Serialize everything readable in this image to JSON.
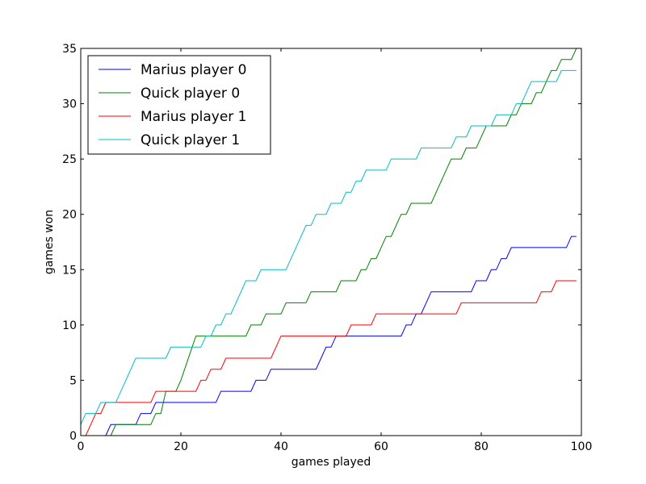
{
  "chart_data": {
    "type": "line",
    "title": "",
    "xlabel": "games played",
    "ylabel": "games won",
    "xlim": [
      0,
      100
    ],
    "ylim": [
      0,
      35
    ],
    "xticks": [
      0,
      20,
      40,
      60,
      80,
      100
    ],
    "yticks": [
      0,
      5,
      10,
      15,
      20,
      25,
      30,
      35
    ],
    "grid": false,
    "legend_position": "top-left",
    "series": [
      {
        "name": "Marius player 0",
        "color": "#0000ff",
        "points": [
          [
            5,
            0
          ],
          [
            6,
            1
          ],
          [
            11,
            1
          ],
          [
            12,
            2
          ],
          [
            14,
            2
          ],
          [
            15,
            3
          ],
          [
            27,
            3
          ],
          [
            28,
            4
          ],
          [
            34,
            4
          ],
          [
            35,
            5
          ],
          [
            37,
            5
          ],
          [
            38,
            6
          ],
          [
            47,
            6
          ],
          [
            48,
            7
          ],
          [
            49,
            8
          ],
          [
            50,
            8
          ],
          [
            51,
            9
          ],
          [
            64,
            9
          ],
          [
            65,
            10
          ],
          [
            66,
            10
          ],
          [
            67,
            11
          ],
          [
            68,
            11
          ],
          [
            69,
            12
          ],
          [
            70,
            13
          ],
          [
            78,
            13
          ],
          [
            79,
            14
          ],
          [
            81,
            14
          ],
          [
            82,
            15
          ],
          [
            83,
            15
          ],
          [
            84,
            16
          ],
          [
            85,
            16
          ],
          [
            86,
            17
          ],
          [
            97,
            17
          ],
          [
            98,
            18
          ],
          [
            99,
            18
          ]
        ]
      },
      {
        "name": "Quick player 0",
        "color": "#008000",
        "points": [
          [
            6,
            0
          ],
          [
            7,
            1
          ],
          [
            11,
            1
          ],
          [
            12,
            1
          ],
          [
            14,
            1
          ],
          [
            15,
            2
          ],
          [
            16,
            2
          ],
          [
            17,
            4
          ],
          [
            19,
            4
          ],
          [
            20,
            5
          ],
          [
            23,
            9
          ],
          [
            33,
            9
          ],
          [
            34,
            10
          ],
          [
            36,
            10
          ],
          [
            37,
            11
          ],
          [
            40,
            11
          ],
          [
            41,
            12
          ],
          [
            45,
            12
          ],
          [
            46,
            13
          ],
          [
            51,
            13
          ],
          [
            52,
            14
          ],
          [
            55,
            14
          ],
          [
            56,
            15
          ],
          [
            57,
            15
          ],
          [
            58,
            16
          ],
          [
            59,
            16
          ],
          [
            61,
            18
          ],
          [
            62,
            18
          ],
          [
            64,
            20
          ],
          [
            65,
            20
          ],
          [
            66,
            21
          ],
          [
            70,
            21
          ],
          [
            74,
            25
          ],
          [
            76,
            25
          ],
          [
            77,
            26
          ],
          [
            79,
            26
          ],
          [
            80,
            27
          ],
          [
            81,
            28
          ],
          [
            85,
            28
          ],
          [
            86,
            29
          ],
          [
            87,
            29
          ],
          [
            88,
            30
          ],
          [
            90,
            30
          ],
          [
            91,
            31
          ],
          [
            92,
            31
          ],
          [
            93,
            32
          ],
          [
            94,
            33
          ],
          [
            95,
            33
          ],
          [
            96,
            34
          ],
          [
            98,
            34
          ],
          [
            99,
            35
          ]
        ]
      },
      {
        "name": "Marius player 1",
        "color": "#ff0000",
        "points": [
          [
            1,
            0
          ],
          [
            3,
            2
          ],
          [
            4,
            2
          ],
          [
            5,
            3
          ],
          [
            14,
            3
          ],
          [
            15,
            4
          ],
          [
            23,
            4
          ],
          [
            24,
            5
          ],
          [
            25,
            5
          ],
          [
            26,
            6
          ],
          [
            28,
            6
          ],
          [
            29,
            7
          ],
          [
            38,
            7
          ],
          [
            40,
            9
          ],
          [
            53,
            9
          ],
          [
            54,
            10
          ],
          [
            58,
            10
          ],
          [
            59,
            11
          ],
          [
            75,
            11
          ],
          [
            76,
            12
          ],
          [
            91,
            12
          ],
          [
            92,
            13
          ],
          [
            94,
            13
          ],
          [
            95,
            14
          ],
          [
            99,
            14
          ]
        ]
      },
      {
        "name": "Quick player 1",
        "color": "#00bfbf",
        "points": [
          [
            0,
            1
          ],
          [
            1,
            2
          ],
          [
            3,
            2
          ],
          [
            4,
            3
          ],
          [
            7,
            3
          ],
          [
            11,
            7
          ],
          [
            17,
            7
          ],
          [
            18,
            8
          ],
          [
            24,
            8
          ],
          [
            25,
            9
          ],
          [
            26,
            9
          ],
          [
            27,
            10
          ],
          [
            28,
            10
          ],
          [
            29,
            11
          ],
          [
            30,
            11
          ],
          [
            33,
            14
          ],
          [
            35,
            14
          ],
          [
            36,
            15
          ],
          [
            41,
            15
          ],
          [
            45,
            19
          ],
          [
            46,
            19
          ],
          [
            47,
            20
          ],
          [
            49,
            20
          ],
          [
            50,
            21
          ],
          [
            52,
            21
          ],
          [
            53,
            22
          ],
          [
            54,
            22
          ],
          [
            55,
            23
          ],
          [
            56,
            23
          ],
          [
            57,
            24
          ],
          [
            61,
            24
          ],
          [
            62,
            25
          ],
          [
            67,
            25
          ],
          [
            68,
            26
          ],
          [
            74,
            26
          ],
          [
            75,
            27
          ],
          [
            77,
            27
          ],
          [
            78,
            28
          ],
          [
            82,
            28
          ],
          [
            83,
            29
          ],
          [
            86,
            29
          ],
          [
            87,
            30
          ],
          [
            88,
            30
          ],
          [
            90,
            32
          ],
          [
            95,
            32
          ],
          [
            96,
            33
          ],
          [
            99,
            33
          ]
        ]
      }
    ]
  }
}
